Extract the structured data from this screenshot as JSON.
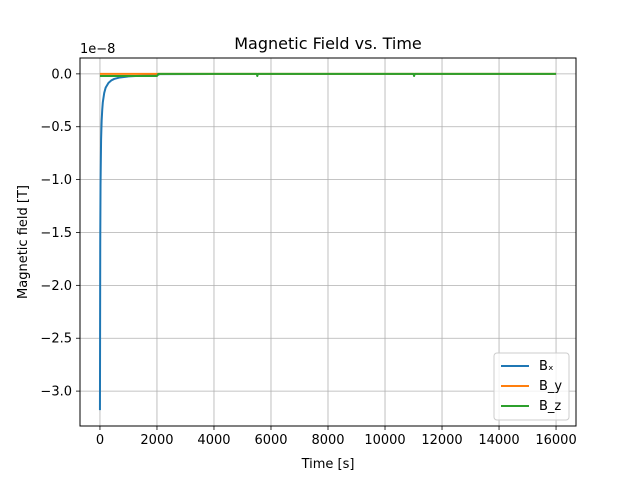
{
  "chart_data": {
    "type": "line",
    "title": "Magnetic Field vs. Time",
    "xlabel": "Time [s]",
    "ylabel": "Magnetic field [T]",
    "offset_label": "1e−8",
    "xlim": [
      -700,
      16700
    ],
    "ylim": [
      -3.33,
      0.15
    ],
    "xticks": [
      0,
      2000,
      4000,
      6000,
      8000,
      10000,
      12000,
      14000,
      16000
    ],
    "xtick_labels": [
      "0",
      "2000",
      "4000",
      "6000",
      "8000",
      "10000",
      "12000",
      "14000",
      "16000"
    ],
    "yticks": [
      0.0,
      -0.5,
      -1.0,
      -1.5,
      -2.0,
      -2.5,
      -3.0
    ],
    "ytick_labels": [
      "0.0",
      "−0.5",
      "−1.0",
      "−1.5",
      "−2.0",
      "−2.5",
      "−3.0"
    ],
    "y_scale_note": "values in units of 1e-8 T",
    "grid": true,
    "legend_position": "lower-right",
    "series": [
      {
        "name": "Bₓ",
        "color": "#1f77b4",
        "x": [
          0,
          10,
          20,
          40,
          60,
          80,
          100,
          150,
          200,
          300,
          400,
          500,
          700,
          1000,
          1500,
          2000,
          2100,
          4000,
          8000,
          12000,
          16000
        ],
        "y": [
          -3.18,
          -1.6,
          -1.05,
          -0.62,
          -0.44,
          -0.34,
          -0.27,
          -0.18,
          -0.13,
          -0.085,
          -0.062,
          -0.048,
          -0.034,
          -0.024,
          -0.017,
          -0.013,
          -0.002,
          -0.001,
          -0.001,
          -0.001,
          -0.001
        ]
      },
      {
        "name": "B_y",
        "color": "#ff7f0e",
        "x": [
          0,
          1000,
          2000,
          4000,
          8000,
          12000,
          16000
        ],
        "y": [
          0.0,
          0.0,
          0.0,
          0.0,
          0.0,
          0.0,
          0.0
        ]
      },
      {
        "name": "B_z",
        "color": "#2ca02c",
        "x": [
          0,
          500,
          1000,
          2000,
          2050,
          4000,
          5500,
          5520,
          5540,
          8000,
          11000,
          11020,
          11040,
          14000,
          16000
        ],
        "y": [
          -0.02,
          -0.02,
          -0.02,
          -0.02,
          0.0,
          0.0,
          0.0,
          -0.02,
          0.0,
          0.0,
          0.0,
          -0.02,
          0.0,
          0.0,
          0.0
        ]
      }
    ]
  }
}
